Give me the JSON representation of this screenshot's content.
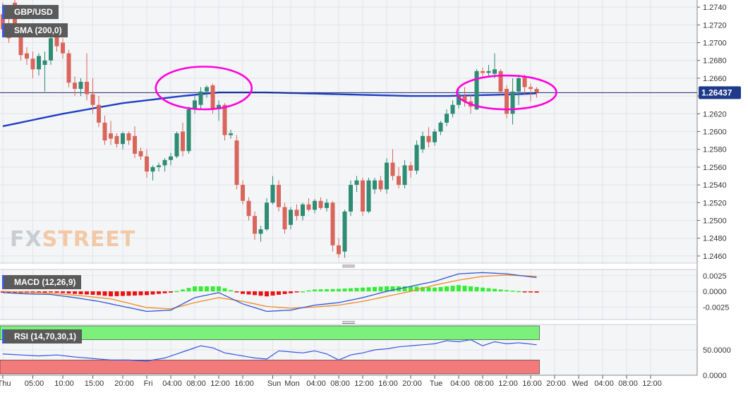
{
  "symbol_label": "GBP/USD",
  "sma_label": "SMA (200,0)",
  "macd_label": "MACD (12,26,9)",
  "rsi_label": "RSI (14,70,30,1)",
  "watermark": {
    "part1": "FX",
    "part2": "STREET"
  },
  "current_price_label": "1.26437",
  "colors": {
    "bull": "#2e8b74",
    "bear": "#d9665c",
    "sma": "#1f3fc2",
    "highlight": "#ff00dd",
    "macd_line": "#2f55d4",
    "signal_line": "#f08a24",
    "hist_pos": "#33ee33",
    "hist_neg": "#ee1111",
    "rsi_line": "#3355dd",
    "rsi_ob_band": "#7bf07b",
    "rsi_os_band": "#f37a7a"
  },
  "chart_data": [
    {
      "type": "candlestick",
      "title": "GBP/USD",
      "price_axis_ticks": [
        "1.2740",
        "1.2720",
        "1.2700",
        "1.2680",
        "1.2660",
        "1.2640",
        "1.2620",
        "1.2600",
        "1.2580",
        "1.2560",
        "1.2540",
        "1.2520",
        "1.2500",
        "1.2480",
        "1.2460"
      ],
      "ylim": [
        1.2452,
        1.2748
      ],
      "time_axis_ticks": [
        {
          "i": 0,
          "label": "Thu"
        },
        {
          "i": 5,
          "label": "05:00"
        },
        {
          "i": 10,
          "label": "10:00"
        },
        {
          "i": 15,
          "label": "15:00"
        },
        {
          "i": 20,
          "label": "20:00"
        },
        {
          "i": 24,
          "label": "Fri"
        },
        {
          "i": 28,
          "label": "04:00"
        },
        {
          "i": 32,
          "label": "08:00"
        },
        {
          "i": 36,
          "label": "12:00"
        },
        {
          "i": 40,
          "label": "16:00"
        },
        {
          "i": 45,
          "label": "Sun"
        },
        {
          "i": 48,
          "label": "Mon"
        },
        {
          "i": 52,
          "label": "04:00"
        },
        {
          "i": 56,
          "label": "08:00"
        },
        {
          "i": 60,
          "label": "12:00"
        },
        {
          "i": 64,
          "label": "16:00"
        },
        {
          "i": 68,
          "label": "20:00"
        },
        {
          "i": 72,
          "label": "Tue"
        },
        {
          "i": 76,
          "label": "04:00"
        },
        {
          "i": 80,
          "label": "08:00"
        },
        {
          "i": 84,
          "label": "12:00"
        },
        {
          "i": 88,
          "label": "16:00"
        },
        {
          "i": 92,
          "label": "20:00"
        },
        {
          "i": 96,
          "label": "Wed"
        },
        {
          "i": 100,
          "label": "04:00"
        },
        {
          "i": 104,
          "label": "08:00"
        },
        {
          "i": 108,
          "label": "12:00"
        }
      ],
      "candles": [
        {
          "o": 1.2732,
          "h": 1.2745,
          "l": 1.2712,
          "c": 1.2715
        },
        {
          "o": 1.2722,
          "h": 1.2735,
          "l": 1.27,
          "c": 1.2705
        },
        {
          "o": 1.2745,
          "h": 1.2748,
          "l": 1.2708,
          "c": 1.2712
        },
        {
          "o": 1.2712,
          "h": 1.2716,
          "l": 1.268,
          "c": 1.2686
        },
        {
          "o": 1.2688,
          "h": 1.2695,
          "l": 1.2675,
          "c": 1.2682
        },
        {
          "o": 1.2682,
          "h": 1.269,
          "l": 1.266,
          "c": 1.267
        },
        {
          "o": 1.267,
          "h": 1.2688,
          "l": 1.2663,
          "c": 1.2685
        },
        {
          "o": 1.2675,
          "h": 1.269,
          "l": 1.2645,
          "c": 1.268
        },
        {
          "o": 1.268,
          "h": 1.2708,
          "l": 1.2675,
          "c": 1.2705
        },
        {
          "o": 1.2708,
          "h": 1.2712,
          "l": 1.269,
          "c": 1.2696
        },
        {
          "o": 1.27,
          "h": 1.2705,
          "l": 1.2682,
          "c": 1.2688
        },
        {
          "o": 1.2688,
          "h": 1.2692,
          "l": 1.265,
          "c": 1.2655
        },
        {
          "o": 1.2655,
          "h": 1.2662,
          "l": 1.264,
          "c": 1.2648
        },
        {
          "o": 1.2648,
          "h": 1.266,
          "l": 1.264,
          "c": 1.2656
        },
        {
          "o": 1.2656,
          "h": 1.2688,
          "l": 1.2635,
          "c": 1.2642
        },
        {
          "o": 1.2642,
          "h": 1.266,
          "l": 1.262,
          "c": 1.263
        },
        {
          "o": 1.263,
          "h": 1.264,
          "l": 1.2605,
          "c": 1.261
        },
        {
          "o": 1.261,
          "h": 1.2618,
          "l": 1.2585,
          "c": 1.259
        },
        {
          "o": 1.2598,
          "h": 1.2612,
          "l": 1.2585,
          "c": 1.2592
        },
        {
          "o": 1.2595,
          "h": 1.2598,
          "l": 1.2582,
          "c": 1.2586
        },
        {
          "o": 1.2586,
          "h": 1.26,
          "l": 1.258,
          "c": 1.2598
        },
        {
          "o": 1.2598,
          "h": 1.26,
          "l": 1.2585,
          "c": 1.259
        },
        {
          "o": 1.2595,
          "h": 1.2606,
          "l": 1.257,
          "c": 1.2575
        },
        {
          "o": 1.2578,
          "h": 1.2582,
          "l": 1.2568,
          "c": 1.2572
        },
        {
          "o": 1.2572,
          "h": 1.258,
          "l": 1.2548,
          "c": 1.2555
        },
        {
          "o": 1.2555,
          "h": 1.2562,
          "l": 1.2545,
          "c": 1.256
        },
        {
          "o": 1.256,
          "h": 1.2565,
          "l": 1.2555,
          "c": 1.2562
        },
        {
          "o": 1.2562,
          "h": 1.257,
          "l": 1.2555,
          "c": 1.2568
        },
        {
          "o": 1.2568,
          "h": 1.2576,
          "l": 1.2562,
          "c": 1.2572
        },
        {
          "o": 1.2572,
          "h": 1.26,
          "l": 1.257,
          "c": 1.2598
        },
        {
          "o": 1.26,
          "h": 1.261,
          "l": 1.2572,
          "c": 1.2578
        },
        {
          "o": 1.2578,
          "h": 1.2628,
          "l": 1.2575,
          "c": 1.2625
        },
        {
          "o": 1.2625,
          "h": 1.264,
          "l": 1.262,
          "c": 1.2635
        },
        {
          "o": 1.263,
          "h": 1.265,
          "l": 1.2625,
          "c": 1.2645
        },
        {
          "o": 1.2645,
          "h": 1.2652,
          "l": 1.2638,
          "c": 1.265
        },
        {
          "o": 1.2652,
          "h": 1.2654,
          "l": 1.262,
          "c": 1.2625
        },
        {
          "o": 1.2625,
          "h": 1.2635,
          "l": 1.2612,
          "c": 1.263
        },
        {
          "o": 1.263,
          "h": 1.2632,
          "l": 1.259,
          "c": 1.2596
        },
        {
          "o": 1.2596,
          "h": 1.2602,
          "l": 1.2592,
          "c": 1.2598
        },
        {
          "o": 1.259,
          "h": 1.2596,
          "l": 1.2535,
          "c": 1.254
        },
        {
          "o": 1.254,
          "h": 1.2545,
          "l": 1.2518,
          "c": 1.2522
        },
        {
          "o": 1.2522,
          "h": 1.2526,
          "l": 1.25,
          "c": 1.2505
        },
        {
          "o": 1.2505,
          "h": 1.251,
          "l": 1.2478,
          "c": 1.2485
        },
        {
          "o": 1.2485,
          "h": 1.2494,
          "l": 1.2476,
          "c": 1.249
        },
        {
          "o": 1.249,
          "h": 1.2525,
          "l": 1.2488,
          "c": 1.252
        },
        {
          "o": 1.252,
          "h": 1.255,
          "l": 1.2518,
          "c": 1.254
        },
        {
          "o": 1.254,
          "h": 1.2545,
          "l": 1.251,
          "c": 1.2515
        },
        {
          "o": 1.2515,
          "h": 1.252,
          "l": 1.2485,
          "c": 1.249
        },
        {
          "o": 1.2495,
          "h": 1.2515,
          "l": 1.249,
          "c": 1.2512
        },
        {
          "o": 1.2512,
          "h": 1.2518,
          "l": 1.25,
          "c": 1.2505
        },
        {
          "o": 1.2505,
          "h": 1.252,
          "l": 1.25,
          "c": 1.2518
        },
        {
          "o": 1.2518,
          "h": 1.2525,
          "l": 1.251,
          "c": 1.2512
        },
        {
          "o": 1.2512,
          "h": 1.2524,
          "l": 1.2508,
          "c": 1.2522
        },
        {
          "o": 1.2522,
          "h": 1.2526,
          "l": 1.2512,
          "c": 1.2514
        },
        {
          "o": 1.2514,
          "h": 1.2524,
          "l": 1.251,
          "c": 1.252
        },
        {
          "o": 1.252,
          "h": 1.2522,
          "l": 1.2465,
          "c": 1.2472
        },
        {
          "o": 1.2472,
          "h": 1.248,
          "l": 1.2458,
          "c": 1.2462
        },
        {
          "o": 1.2465,
          "h": 1.2512,
          "l": 1.2458,
          "c": 1.251
        },
        {
          "o": 1.251,
          "h": 1.2545,
          "l": 1.2505,
          "c": 1.254
        },
        {
          "o": 1.254,
          "h": 1.255,
          "l": 1.2532,
          "c": 1.2545
        },
        {
          "o": 1.2545,
          "h": 1.2548,
          "l": 1.2505,
          "c": 1.251
        },
        {
          "o": 1.251,
          "h": 1.2548,
          "l": 1.2508,
          "c": 1.2545
        },
        {
          "o": 1.2535,
          "h": 1.2548,
          "l": 1.253,
          "c": 1.2545
        },
        {
          "o": 1.2545,
          "h": 1.255,
          "l": 1.2532,
          "c": 1.2535
        },
        {
          "o": 1.2535,
          "h": 1.257,
          "l": 1.253,
          "c": 1.2565
        },
        {
          "o": 1.2565,
          "h": 1.258,
          "l": 1.2545,
          "c": 1.255
        },
        {
          "o": 1.255,
          "h": 1.256,
          "l": 1.2536,
          "c": 1.254
        },
        {
          "o": 1.254,
          "h": 1.2568,
          "l": 1.2536,
          "c": 1.2562
        },
        {
          "o": 1.2562,
          "h": 1.2566,
          "l": 1.2548,
          "c": 1.2556
        },
        {
          "o": 1.2556,
          "h": 1.259,
          "l": 1.2552,
          "c": 1.2585
        },
        {
          "o": 1.258,
          "h": 1.26,
          "l": 1.2576,
          "c": 1.2595
        },
        {
          "o": 1.2595,
          "h": 1.2605,
          "l": 1.2582,
          "c": 1.2588
        },
        {
          "o": 1.2588,
          "h": 1.2603,
          "l": 1.2584,
          "c": 1.26
        },
        {
          "o": 1.26,
          "h": 1.2612,
          "l": 1.2596,
          "c": 1.261
        },
        {
          "o": 1.261,
          "h": 1.2625,
          "l": 1.2606,
          "c": 1.262
        },
        {
          "o": 1.262,
          "h": 1.2635,
          "l": 1.2616,
          "c": 1.263
        },
        {
          "o": 1.263,
          "h": 1.2648,
          "l": 1.2626,
          "c": 1.2642
        },
        {
          "o": 1.264,
          "h": 1.265,
          "l": 1.2628,
          "c": 1.2634
        },
        {
          "o": 1.2634,
          "h": 1.2642,
          "l": 1.262,
          "c": 1.2628
        },
        {
          "o": 1.2625,
          "h": 1.267,
          "l": 1.2624,
          "c": 1.2668
        },
        {
          "o": 1.2668,
          "h": 1.2672,
          "l": 1.266,
          "c": 1.2666
        },
        {
          "o": 1.2666,
          "h": 1.2675,
          "l": 1.2662,
          "c": 1.2668
        },
        {
          "o": 1.2665,
          "h": 1.2688,
          "l": 1.266,
          "c": 1.267
        },
        {
          "o": 1.2668,
          "h": 1.267,
          "l": 1.264,
          "c": 1.2645
        },
        {
          "o": 1.2648,
          "h": 1.2652,
          "l": 1.2615,
          "c": 1.262
        },
        {
          "o": 1.262,
          "h": 1.266,
          "l": 1.2608,
          "c": 1.2645
        },
        {
          "o": 1.2645,
          "h": 1.2664,
          "l": 1.263,
          "c": 1.266
        },
        {
          "o": 1.2662,
          "h": 1.2664,
          "l": 1.2642,
          "c": 1.265
        },
        {
          "o": 1.265,
          "h": 1.2654,
          "l": 1.2634,
          "c": 1.2648
        },
        {
          "o": 1.2648,
          "h": 1.265,
          "l": 1.2638,
          "c": 1.2644
        }
      ],
      "sma_200": [
        [
          0,
          1.2606
        ],
        [
          10,
          1.262
        ],
        [
          20,
          1.2632
        ],
        [
          30,
          1.264
        ],
        [
          36,
          1.2644
        ],
        [
          44,
          1.2644
        ],
        [
          56,
          1.2642
        ],
        [
          68,
          1.264
        ],
        [
          74,
          1.264
        ],
        [
          80,
          1.2641
        ],
        [
          86,
          1.2642
        ],
        [
          89,
          1.2643
        ]
      ],
      "highlights": [
        {
          "cx_index": 33.5,
          "cy_price": 1.2649,
          "rx_bars": 8.0,
          "ry_price": 0.0024
        },
        {
          "cx_index": 84.0,
          "cy_price": 1.2644,
          "rx_bars": 8.3,
          "ry_price": 0.0019
        }
      ],
      "current_price": 1.26437
    },
    {
      "type": "macd",
      "title": "MACD (12,26,9)",
      "ticks": [
        "0.0025",
        "0.0000",
        "-0.0025"
      ],
      "ylim": [
        -0.0045,
        0.0035
      ],
      "macd_line": [
        [
          0,
          -0.0002
        ],
        [
          4,
          -0.0004
        ],
        [
          8,
          -0.0005
        ],
        [
          12,
          -0.001
        ],
        [
          16,
          -0.0016
        ],
        [
          20,
          -0.0024
        ],
        [
          24,
          -0.0032
        ],
        [
          28,
          -0.003
        ],
        [
          32,
          -0.001
        ],
        [
          36,
          -0.0002
        ],
        [
          40,
          -0.002
        ],
        [
          44,
          -0.0032
        ],
        [
          48,
          -0.003
        ],
        [
          52,
          -0.0022
        ],
        [
          56,
          -0.0018
        ],
        [
          60,
          -0.001
        ],
        [
          64,
          0.0
        ],
        [
          68,
          0.0008
        ],
        [
          72,
          0.0016
        ],
        [
          76,
          0.0028
        ],
        [
          80,
          0.003
        ],
        [
          84,
          0.0028
        ],
        [
          89,
          0.0022
        ]
      ],
      "signal_line": [
        [
          0,
          0.0
        ],
        [
          6,
          -0.0002
        ],
        [
          12,
          -0.0006
        ],
        [
          18,
          -0.0012
        ],
        [
          24,
          -0.0026
        ],
        [
          28,
          -0.0028
        ],
        [
          32,
          -0.0018
        ],
        [
          36,
          -0.001
        ],
        [
          40,
          -0.0016
        ],
        [
          44,
          -0.0024
        ],
        [
          48,
          -0.0027
        ],
        [
          52,
          -0.0025
        ],
        [
          56,
          -0.0022
        ],
        [
          60,
          -0.0016
        ],
        [
          64,
          -0.0008
        ],
        [
          68,
          0.0
        ],
        [
          72,
          0.001
        ],
        [
          76,
          0.0018
        ],
        [
          80,
          0.0024
        ],
        [
          84,
          0.0026
        ],
        [
          89,
          0.0024
        ]
      ],
      "histogram_colors_by_sign": true
    },
    {
      "type": "rsi",
      "title": "RSI (14,70,30,1)",
      "ticks": [
        "50.0000",
        "0.0000"
      ],
      "ylim": [
        0,
        100
      ],
      "overbought": 70,
      "oversold": 30,
      "rsi_line": [
        [
          0,
          42
        ],
        [
          3,
          40
        ],
        [
          6,
          38
        ],
        [
          9,
          40
        ],
        [
          12,
          36
        ],
        [
          15,
          33
        ],
        [
          18,
          30
        ],
        [
          21,
          30
        ],
        [
          24,
          28
        ],
        [
          27,
          34
        ],
        [
          30,
          46
        ],
        [
          33,
          58
        ],
        [
          35,
          54
        ],
        [
          37,
          44
        ],
        [
          40,
          38
        ],
        [
          42,
          34
        ],
        [
          44,
          32
        ],
        [
          46,
          48
        ],
        [
          48,
          46
        ],
        [
          50,
          44
        ],
        [
          52,
          48
        ],
        [
          54,
          42
        ],
        [
          56,
          30
        ],
        [
          58,
          40
        ],
        [
          60,
          44
        ],
        [
          62,
          50
        ],
        [
          64,
          52
        ],
        [
          66,
          56
        ],
        [
          68,
          58
        ],
        [
          70,
          60
        ],
        [
          72,
          62
        ],
        [
          74,
          68
        ],
        [
          76,
          66
        ],
        [
          78,
          70
        ],
        [
          80,
          58
        ],
        [
          82,
          66
        ],
        [
          84,
          62
        ],
        [
          86,
          64
        ],
        [
          89,
          60
        ]
      ]
    }
  ]
}
